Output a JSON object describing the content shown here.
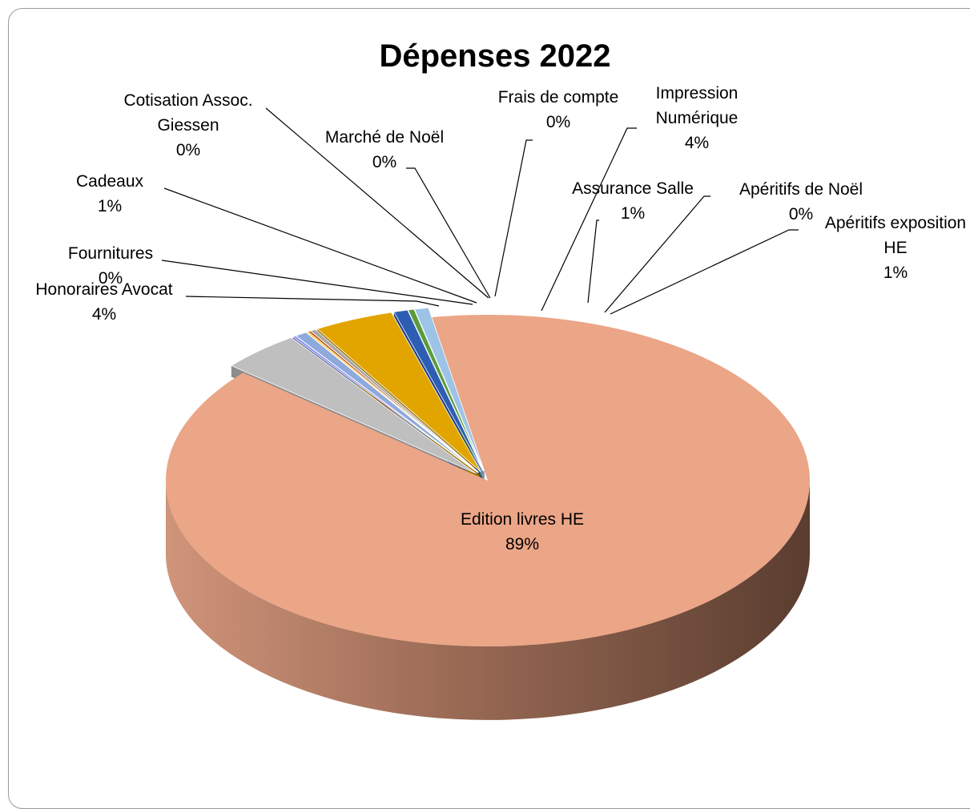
{
  "chart_data": {
    "type": "pie",
    "title": "Dépenses 2022",
    "slices": [
      {
        "label": [
          "Edition livres HE"
        ],
        "pct": "89%",
        "value": 89,
        "color": "#eba587",
        "side": "#8a5a44"
      },
      {
        "label": [
          "Honoraires Avocat"
        ],
        "pct": "4%",
        "value": 4,
        "color": "#bfbfbf",
        "side": "#8c8c8c"
      },
      {
        "label": [
          "Fournitures"
        ],
        "pct": "0%",
        "value": 0.15,
        "color": "#7f7fff",
        "side": "#5a5aa8"
      },
      {
        "label": [
          "Cadeaux"
        ],
        "pct": "1%",
        "value": 0.6,
        "color": "#8ea9db",
        "side": "#5f7399"
      },
      {
        "label": [
          "Cotisation Assoc.",
          "Giessen"
        ],
        "pct": "0%",
        "value": 0.1,
        "color": "#ffc000",
        "side": "#a07a00"
      },
      {
        "label": [
          "Marché de Noël"
        ],
        "pct": "0%",
        "value": 0.15,
        "color": "#c55a11",
        "side": "#7e3a0b"
      },
      {
        "label": [
          "Frais de compte"
        ],
        "pct": "0%",
        "value": 0.25,
        "color": "#a5a5a5",
        "side": "#6e6e6e"
      },
      {
        "label": [
          "Impression",
          "Numérique"
        ],
        "pct": "4%",
        "value": 4,
        "color": "#e2a500",
        "side": "#9c7200"
      },
      {
        "label": [
          "Assurance Salle"
        ],
        "pct": "1%",
        "value": 0.7,
        "color": "#2e5eb4",
        "side": "#1f3f7a"
      },
      {
        "label": [
          "Apéritifs de  Noël"
        ],
        "pct": "0%",
        "value": 0.3,
        "color": "#5b9b3c",
        "side": "#3c6728"
      },
      {
        "label": [
          "Apéritifs exposition",
          "HE"
        ],
        "pct": "1%",
        "value": 0.7,
        "color": "#9dc3e6",
        "side": "#6f8faf"
      }
    ]
  }
}
